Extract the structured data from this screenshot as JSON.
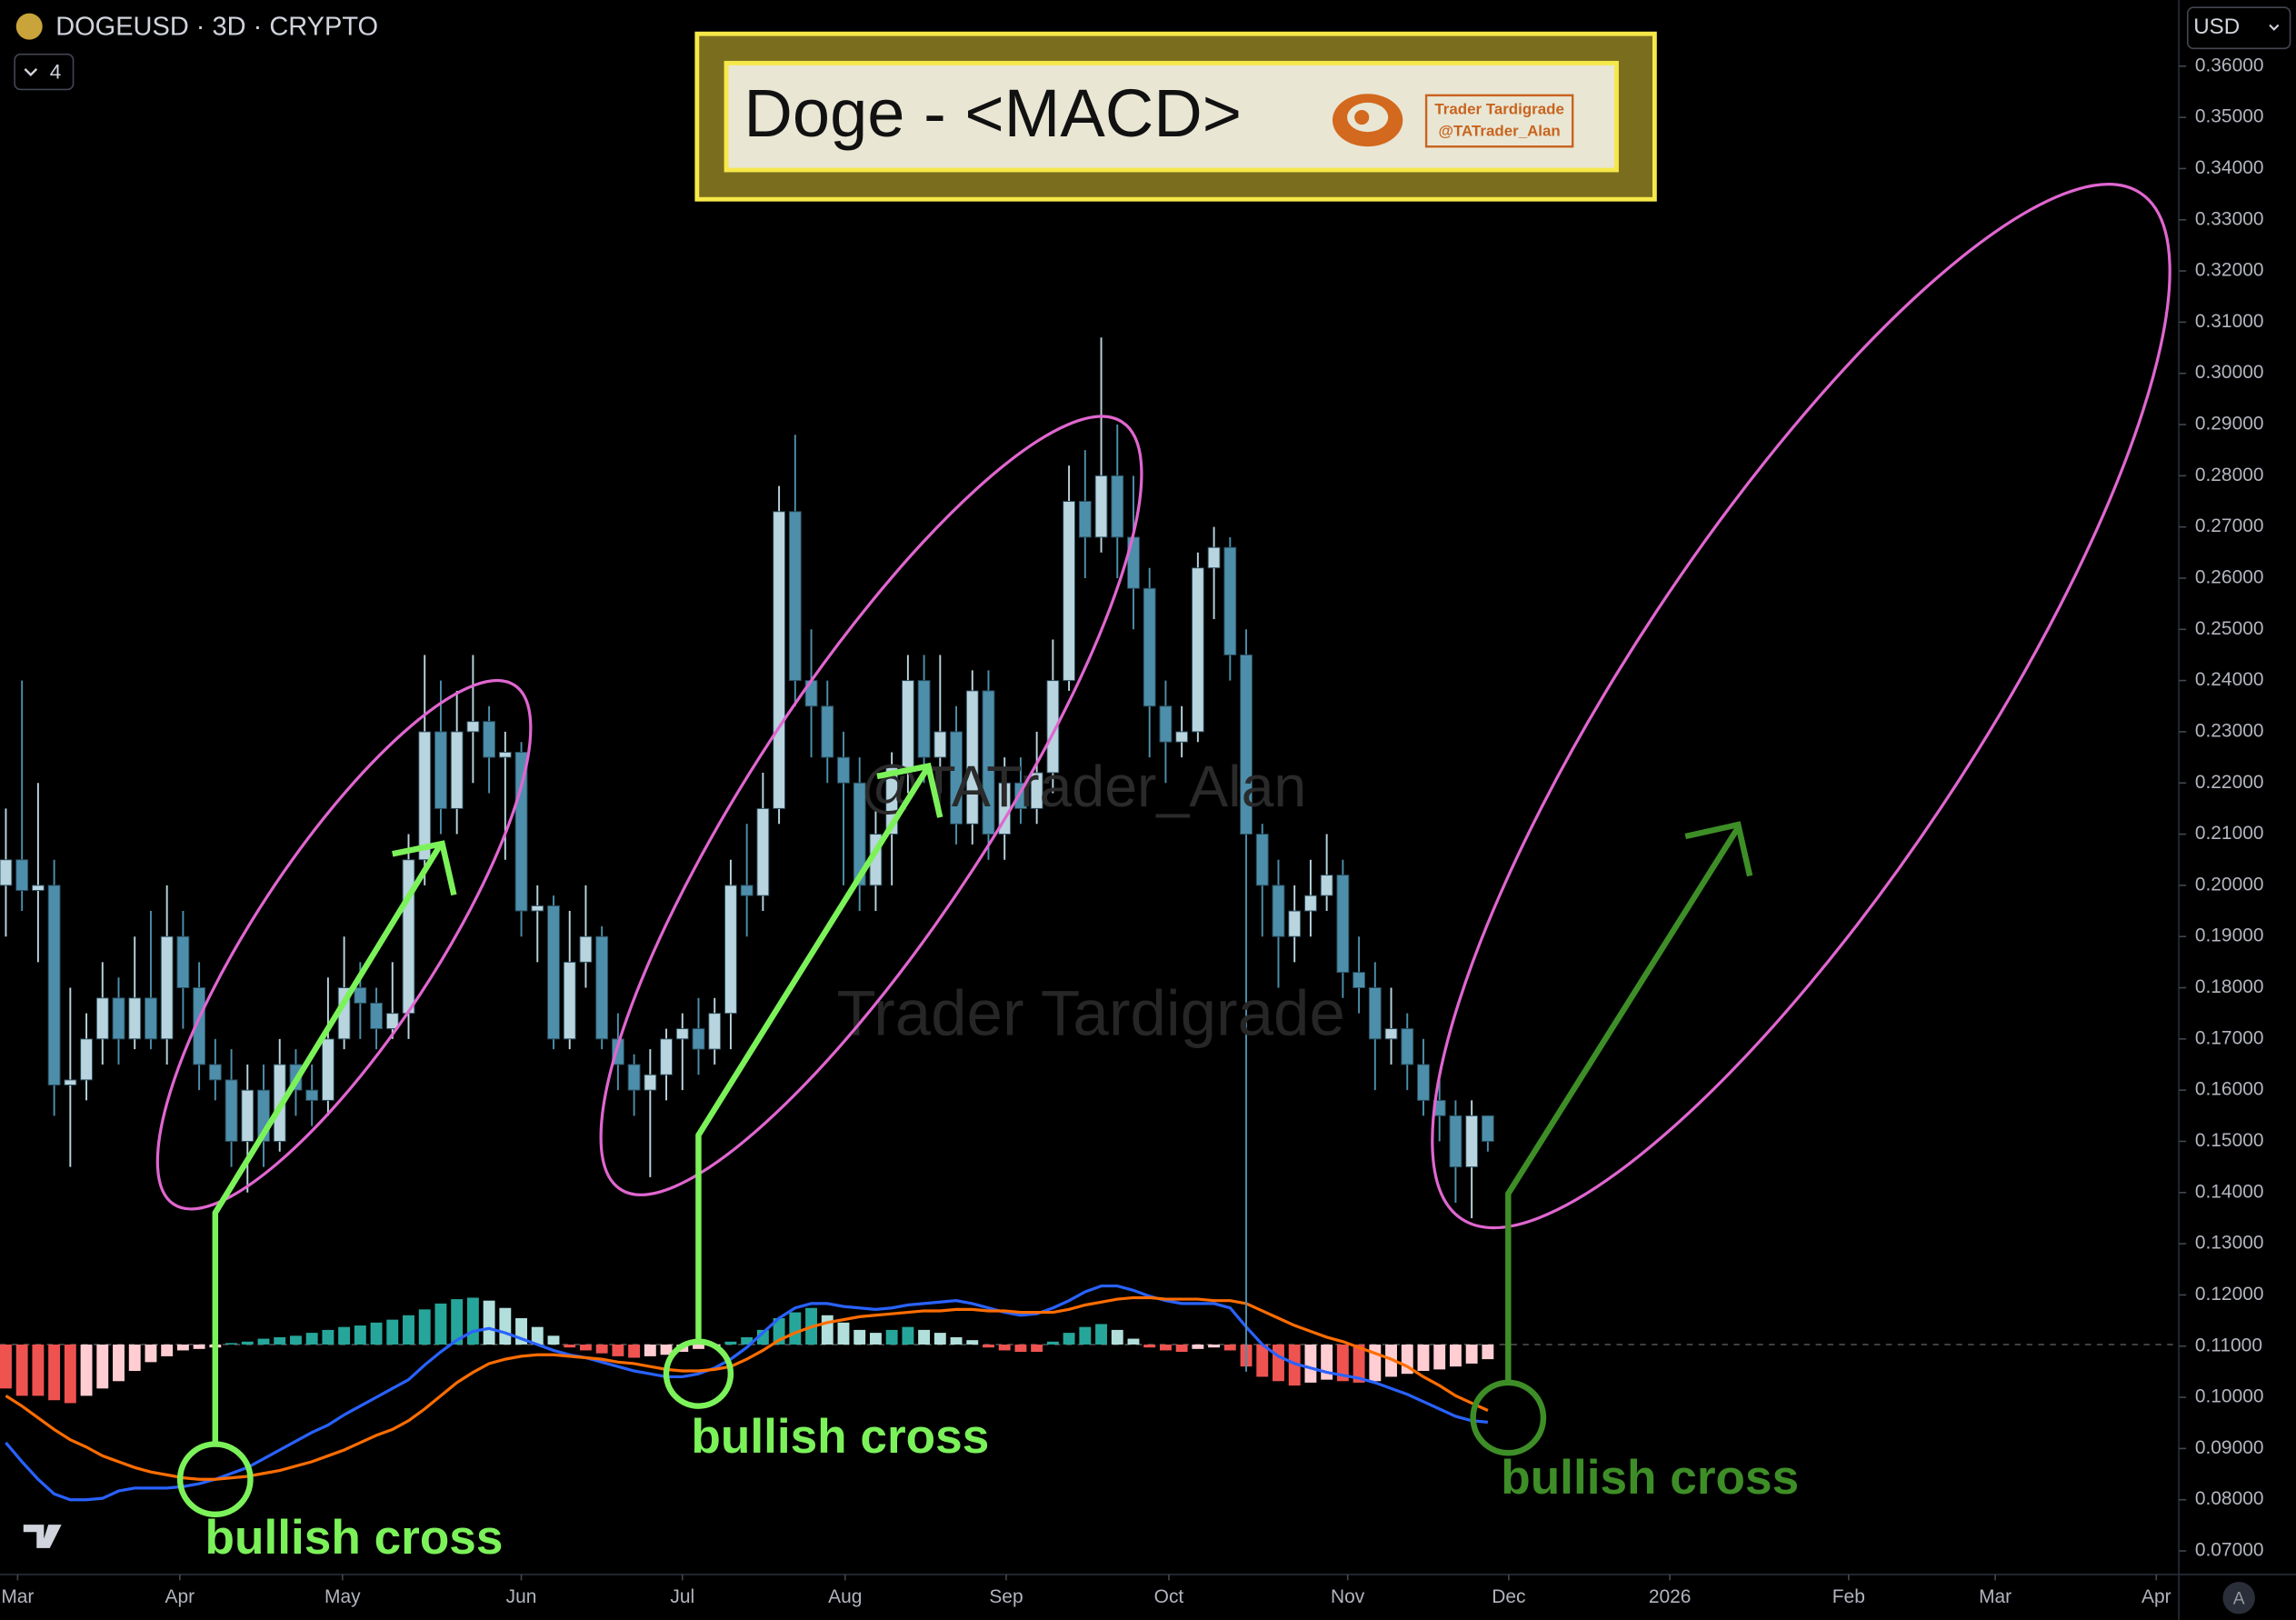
{
  "chart_data": {
    "type": "candlestick",
    "symbol": "DOGEUSD · 3D · CRYPTO",
    "indicator_count": "4",
    "currency": "USD",
    "auto_label": "A",
    "title": "Doge - <MACD>",
    "logo_lines": [
      "Trader Tardigrade",
      "@TATrader_Alan"
    ],
    "watermarks": [
      "@TATrader_Alan",
      "Trader Tardigrade"
    ],
    "annotations": [
      "bullish cross",
      "bullish cross",
      "bullish cross"
    ],
    "up_color": "#b8d4de",
    "down_color": "#4d8fab",
    "ylim": [
      0.0654,
      0.3729
    ],
    "yticks": [
      {
        "value": 0.36,
        "label": "0.36000"
      },
      {
        "value": 0.35,
        "label": "0.35000"
      },
      {
        "value": 0.34,
        "label": "0.34000"
      },
      {
        "value": 0.33,
        "label": "0.33000"
      },
      {
        "value": 0.32,
        "label": "0.32000"
      },
      {
        "value": 0.31,
        "label": "0.31000"
      },
      {
        "value": 0.3,
        "label": "0.30000"
      },
      {
        "value": 0.29,
        "label": "0.29000"
      },
      {
        "value": 0.28,
        "label": "0.28000"
      },
      {
        "value": 0.27,
        "label": "0.27000"
      },
      {
        "value": 0.26,
        "label": "0.26000"
      },
      {
        "value": 0.25,
        "label": "0.25000"
      },
      {
        "value": 0.24,
        "label": "0.24000"
      },
      {
        "value": 0.23,
        "label": "0.23000"
      },
      {
        "value": 0.22,
        "label": "0.22000"
      },
      {
        "value": 0.21,
        "label": "0.21000"
      },
      {
        "value": 0.2,
        "label": "0.20000"
      },
      {
        "value": 0.19,
        "label": "0.19000"
      },
      {
        "value": 0.18,
        "label": "0.18000"
      },
      {
        "value": 0.17,
        "label": "0.17000"
      },
      {
        "value": 0.16,
        "label": "0.16000"
      },
      {
        "value": 0.15,
        "label": "0.15000"
      },
      {
        "value": 0.14,
        "label": "0.14000"
      },
      {
        "value": 0.13,
        "label": "0.13000"
      },
      {
        "value": 0.12,
        "label": "0.12000"
      },
      {
        "value": 0.11,
        "label": "0.11000"
      },
      {
        "value": 0.1,
        "label": "0.10000"
      },
      {
        "value": 0.09,
        "label": "0.09000"
      },
      {
        "value": 0.08,
        "label": "0.08000"
      },
      {
        "value": 0.07,
        "label": "0.07000"
      }
    ],
    "xlim": [
      -0.364,
      134.9
    ],
    "xticks": [
      {
        "value": 0.73,
        "label": "Mar"
      },
      {
        "value": 10.8,
        "label": "Apr"
      },
      {
        "value": 20.9,
        "label": "May"
      },
      {
        "value": 32,
        "label": "Jun"
      },
      {
        "value": 42,
        "label": "Jul"
      },
      {
        "value": 52.1,
        "label": "Aug"
      },
      {
        "value": 62.1,
        "label": "Sep"
      },
      {
        "value": 72.2,
        "label": "Oct"
      },
      {
        "value": 83.3,
        "label": "Nov"
      },
      {
        "value": 93.3,
        "label": "Dec"
      },
      {
        "value": 103.3,
        "label": "2026"
      },
      {
        "value": 114.4,
        "label": "Feb"
      },
      {
        "value": 123.5,
        "label": "Mar"
      },
      {
        "value": 133.5,
        "label": "Apr"
      }
    ],
    "open": [
      0.2,
      0.205,
      0.199,
      0.2,
      0.161,
      0.162,
      0.17,
      0.178,
      0.17,
      0.178,
      0.17,
      0.19,
      0.18,
      0.165,
      0.162,
      0.15,
      0.16,
      0.15,
      0.165,
      0.16,
      0.158,
      0.17,
      0.18,
      0.177,
      0.172,
      0.175,
      0.205,
      0.23,
      0.215,
      0.23,
      0.232,
      0.225,
      0.226,
      0.195,
      0.196,
      0.17,
      0.185,
      0.19,
      0.17,
      0.165,
      0.16,
      0.163,
      0.17,
      0.172,
      0.168,
      0.175,
      0.2,
      0.198,
      0.215,
      0.273,
      0.24,
      0.235,
      0.225,
      0.22,
      0.2,
      0.21,
      0.223,
      0.24,
      0.225,
      0.23,
      0.212,
      0.238,
      0.21,
      0.22,
      0.215,
      0.222,
      0.24,
      0.275,
      0.268,
      0.28,
      0.268,
      0.258,
      0.235,
      0.228,
      0.23,
      0.262,
      0.266,
      0.245,
      0.21,
      0.2,
      0.19,
      0.195,
      0.198,
      0.202,
      0.183,
      0.18,
      0.17,
      0.172,
      0.165,
      0.158,
      0.155,
      0.145,
      0.155
    ],
    "high": [
      0.215,
      0.24,
      0.22,
      0.205,
      0.18,
      0.175,
      0.185,
      0.182,
      0.19,
      0.195,
      0.2,
      0.195,
      0.185,
      0.17,
      0.168,
      0.165,
      0.165,
      0.17,
      0.168,
      0.165,
      0.182,
      0.19,
      0.185,
      0.18,
      0.185,
      0.21,
      0.245,
      0.24,
      0.238,
      0.245,
      0.235,
      0.23,
      0.228,
      0.2,
      0.198,
      0.195,
      0.2,
      0.192,
      0.175,
      0.167,
      0.168,
      0.172,
      0.175,
      0.178,
      0.178,
      0.205,
      0.212,
      0.222,
      0.278,
      0.288,
      0.25,
      0.24,
      0.23,
      0.225,
      0.215,
      0.226,
      0.245,
      0.245,
      0.245,
      0.235,
      0.242,
      0.242,
      0.225,
      0.225,
      0.23,
      0.248,
      0.282,
      0.285,
      0.307,
      0.29,
      0.28,
      0.262,
      0.24,
      0.235,
      0.265,
      0.27,
      0.268,
      0.25,
      0.212,
      0.205,
      0.2,
      0.205,
      0.21,
      0.205,
      0.19,
      0.185,
      0.18,
      0.175,
      0.17,
      0.162,
      0.158,
      0.158,
      0.153
    ],
    "low": [
      0.19,
      0.195,
      0.185,
      0.155,
      0.145,
      0.158,
      0.165,
      0.165,
      0.168,
      0.168,
      0.165,
      0.172,
      0.16,
      0.158,
      0.145,
      0.14,
      0.145,
      0.148,
      0.155,
      0.153,
      0.155,
      0.168,
      0.17,
      0.168,
      0.17,
      0.17,
      0.2,
      0.21,
      0.21,
      0.22,
      0.218,
      0.205,
      0.19,
      0.185,
      0.168,
      0.168,
      0.18,
      0.168,
      0.16,
      0.155,
      0.143,
      0.158,
      0.16,
      0.163,
      0.165,
      0.168,
      0.19,
      0.195,
      0.212,
      0.235,
      0.225,
      0.22,
      0.2,
      0.195,
      0.195,
      0.2,
      0.218,
      0.22,
      0.218,
      0.208,
      0.208,
      0.205,
      0.205,
      0.212,
      0.212,
      0.218,
      0.238,
      0.26,
      0.265,
      0.26,
      0.25,
      0.225,
      0.22,
      0.225,
      0.228,
      0.252,
      0.24,
      0.105,
      0.19,
      0.18,
      0.185,
      0.19,
      0.195,
      0.178,
      0.175,
      0.16,
      0.165,
      0.16,
      0.155,
      0.15,
      0.138,
      0.135,
      0.148
    ],
    "close": [
      0.205,
      0.199,
      0.2,
      0.161,
      0.162,
      0.17,
      0.178,
      0.17,
      0.178,
      0.17,
      0.19,
      0.18,
      0.165,
      0.162,
      0.15,
      0.16,
      0.15,
      0.165,
      0.16,
      0.158,
      0.17,
      0.18,
      0.177,
      0.172,
      0.175,
      0.205,
      0.23,
      0.215,
      0.23,
      0.232,
      0.225,
      0.226,
      0.195,
      0.196,
      0.17,
      0.185,
      0.19,
      0.17,
      0.165,
      0.16,
      0.163,
      0.17,
      0.172,
      0.168,
      0.175,
      0.2,
      0.198,
      0.215,
      0.273,
      0.24,
      0.235,
      0.225,
      0.22,
      0.2,
      0.21,
      0.223,
      0.24,
      0.225,
      0.23,
      0.212,
      0.238,
      0.21,
      0.22,
      0.215,
      0.222,
      0.24,
      0.275,
      0.268,
      0.28,
      0.268,
      0.258,
      0.235,
      0.228,
      0.23,
      0.262,
      0.266,
      0.245,
      0.21,
      0.2,
      0.19,
      0.195,
      0.198,
      0.202,
      0.183,
      0.18,
      0.17,
      0.172,
      0.165,
      0.158,
      0.155,
      0.145,
      0.155,
      0.15
    ],
    "macd": {
      "ylim": [
        -1.5,
        1.0
      ],
      "hist_colors": {
        "pos_rising": "#26a69a",
        "pos_falling": "#b2dfdb",
        "neg_falling": "#ef5350",
        "neg_rising": "#ffcdd2"
      },
      "histogram": [
        -0.3,
        -0.35,
        -0.35,
        -0.38,
        -0.4,
        -0.35,
        -0.3,
        -0.25,
        -0.18,
        -0.12,
        -0.08,
        -0.04,
        -0.03,
        -0.02,
        0.01,
        0.02,
        0.04,
        0.05,
        0.06,
        0.08,
        0.1,
        0.12,
        0.13,
        0.15,
        0.17,
        0.2,
        0.24,
        0.28,
        0.31,
        0.32,
        0.3,
        0.25,
        0.18,
        0.12,
        0.06,
        -0.02,
        -0.04,
        -0.06,
        -0.08,
        -0.09,
        -0.08,
        -0.07,
        -0.05,
        -0.03,
        -0.01,
        0.02,
        0.05,
        0.1,
        0.18,
        0.22,
        0.25,
        0.2,
        0.15,
        0.1,
        0.08,
        0.1,
        0.12,
        0.1,
        0.08,
        0.05,
        0.03,
        -0.02,
        -0.04,
        -0.05,
        -0.05,
        0.02,
        0.08,
        0.12,
        0.14,
        0.1,
        0.04,
        -0.02,
        -0.04,
        -0.05,
        -0.03,
        -0.02,
        -0.04,
        -0.15,
        -0.22,
        -0.25,
        -0.28,
        -0.26,
        -0.24,
        -0.25,
        -0.26,
        -0.25,
        -0.22,
        -0.2,
        -0.18,
        -0.17,
        -0.15,
        -0.13,
        -0.1
      ],
      "macd_line": {
        "color": "#2962ff",
        "values": [
          -0.67,
          -0.8,
          -0.92,
          -1.02,
          -1.06,
          -1.06,
          -1.05,
          -1.0,
          -0.98,
          -0.98,
          -0.98,
          -0.97,
          -0.95,
          -0.92,
          -0.88,
          -0.84,
          -0.78,
          -0.72,
          -0.66,
          -0.6,
          -0.55,
          -0.48,
          -0.42,
          -0.36,
          -0.3,
          -0.24,
          -0.14,
          -0.05,
          0.03,
          0.09,
          0.11,
          0.08,
          0.04,
          0.0,
          -0.04,
          -0.07,
          -0.09,
          -0.12,
          -0.15,
          -0.18,
          -0.2,
          -0.22,
          -0.22,
          -0.2,
          -0.16,
          -0.1,
          -0.02,
          0.08,
          0.18,
          0.25,
          0.28,
          0.28,
          0.26,
          0.25,
          0.24,
          0.25,
          0.27,
          0.28,
          0.29,
          0.3,
          0.28,
          0.25,
          0.22,
          0.2,
          0.21,
          0.25,
          0.3,
          0.36,
          0.4,
          0.4,
          0.37,
          0.33,
          0.3,
          0.28,
          0.28,
          0.28,
          0.25,
          0.12,
          0.0,
          -0.08,
          -0.13,
          -0.16,
          -0.19,
          -0.21,
          -0.23,
          -0.26,
          -0.3,
          -0.34,
          -0.39,
          -0.44,
          -0.49,
          -0.52,
          -0.53
        ]
      },
      "signal_line": {
        "color": "#ff6d00",
        "values": [
          -0.35,
          -0.42,
          -0.5,
          -0.58,
          -0.65,
          -0.7,
          -0.76,
          -0.8,
          -0.84,
          -0.87,
          -0.89,
          -0.91,
          -0.92,
          -0.92,
          -0.91,
          -0.9,
          -0.88,
          -0.86,
          -0.83,
          -0.8,
          -0.76,
          -0.72,
          -0.67,
          -0.62,
          -0.58,
          -0.52,
          -0.44,
          -0.35,
          -0.26,
          -0.19,
          -0.13,
          -0.1,
          -0.08,
          -0.07,
          -0.07,
          -0.08,
          -0.09,
          -0.1,
          -0.12,
          -0.13,
          -0.15,
          -0.17,
          -0.18,
          -0.18,
          -0.17,
          -0.15,
          -0.1,
          -0.04,
          0.03,
          0.08,
          0.12,
          0.15,
          0.17,
          0.19,
          0.2,
          0.21,
          0.22,
          0.23,
          0.23,
          0.24,
          0.24,
          0.23,
          0.23,
          0.22,
          0.22,
          0.22,
          0.24,
          0.27,
          0.29,
          0.31,
          0.32,
          0.32,
          0.31,
          0.31,
          0.31,
          0.3,
          0.3,
          0.28,
          0.23,
          0.18,
          0.13,
          0.09,
          0.05,
          0.02,
          -0.02,
          -0.06,
          -0.1,
          -0.15,
          -0.22,
          -0.28,
          -0.35,
          -0.4,
          -0.45
        ]
      }
    }
  }
}
